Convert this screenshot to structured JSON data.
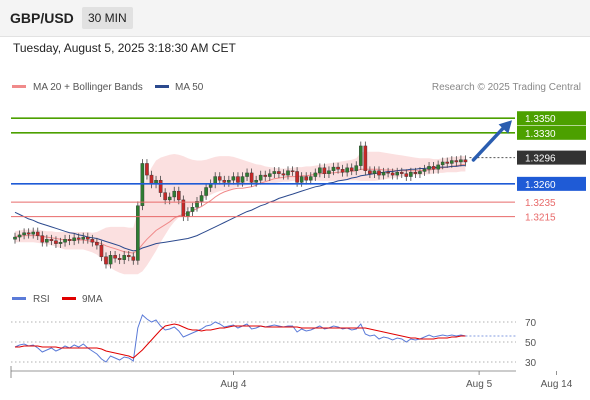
{
  "header": {
    "symbol": "GBP/USD",
    "interval": "30 MIN"
  },
  "subtitle": "Tuesday, August 5, 2025 3:18:30 AM CET",
  "credit": "Research © 2025 Trading Central",
  "colors": {
    "green": "#4ca000",
    "blue": "#1f5bd6",
    "red": "#e86a6a",
    "dark": "#333333",
    "band": "#fadada",
    "ma50": "#2c4a8e",
    "candle_up": "#2e7d32",
    "candle_down": "#c62828",
    "rsi": "#5b7bd8",
    "rsi_ma": "#e00000",
    "arrow": "#2a5db0"
  },
  "chart_data": [
    {
      "type": "candlestick",
      "title": "GBP/USD",
      "legend": [
        {
          "name": "MA 20 + Bollinger Bands",
          "color": "#f08a8a"
        },
        {
          "name": "MA 50",
          "color": "#2c4a8e"
        }
      ],
      "ylim": [
        1.3135,
        1.3375
      ],
      "x_ticks": [
        {
          "label": "Aug 4",
          "i": 48
        },
        {
          "label": "Aug 5",
          "i": 102
        },
        {
          "label": "Aug 14",
          "i": 119
        }
      ],
      "levels": [
        {
          "label": "1.3350",
          "value": 1.335,
          "color": "#4ca000"
        },
        {
          "label": "1.3330",
          "value": 1.333,
          "color": "#4ca000"
        },
        {
          "label": "1.3296",
          "value": 1.3296,
          "color": "#333333"
        },
        {
          "label": "1.3260",
          "value": 1.326,
          "color": "#1f5bd6"
        },
        {
          "label": "1.3235",
          "value": 1.3235,
          "color": "#e86a6a"
        },
        {
          "label": "1.3215",
          "value": 1.3215,
          "color": "#e86a6a"
        }
      ],
      "candles_close": [
        1.3187,
        1.319,
        1.3193,
        1.3191,
        1.3194,
        1.3189,
        1.318,
        1.3184,
        1.3182,
        1.3178,
        1.318,
        1.3184,
        1.3182,
        1.3186,
        1.3184,
        1.3187,
        1.3184,
        1.318,
        1.3176,
        1.316,
        1.315,
        1.3162,
        1.3158,
        1.3156,
        1.3162,
        1.316,
        1.3155,
        1.323,
        1.3288,
        1.3272,
        1.326,
        1.3265,
        1.3248,
        1.3238,
        1.3242,
        1.325,
        1.3238,
        1.3215,
        1.3222,
        1.3228,
        1.3236,
        1.3244,
        1.3255,
        1.326,
        1.327,
        1.3265,
        1.3262,
        1.3265,
        1.327,
        1.3262,
        1.327,
        1.3275,
        1.3262,
        1.3265,
        1.3272,
        1.327,
        1.3274,
        1.3277,
        1.3274,
        1.3272,
        1.3278,
        1.3277,
        1.3262,
        1.327,
        1.3265,
        1.327,
        1.3275,
        1.3282,
        1.3274,
        1.3278,
        1.3283,
        1.328,
        1.3276,
        1.3282,
        1.3278,
        1.3285,
        1.3312,
        1.3278,
        1.3274,
        1.3278,
        1.3272,
        1.3276,
        1.3275,
        1.3272,
        1.3276,
        1.3274,
        1.327,
        1.3276,
        1.3274,
        1.3277,
        1.328,
        1.3284,
        1.328,
        1.3286,
        1.329,
        1.3288,
        1.3292,
        1.329,
        1.3293,
        1.329
      ],
      "ma20": [
        1.3188,
        1.3188,
        1.3189,
        1.3189,
        1.3189,
        1.3189,
        1.3188,
        1.3187,
        1.3186,
        1.3185,
        1.3184,
        1.3183,
        1.3183,
        1.3183,
        1.3183,
        1.3183,
        1.3182,
        1.3181,
        1.318,
        1.3178,
        1.3175,
        1.3173,
        1.3171,
        1.3169,
        1.3167,
        1.3166,
        1.3165,
        1.3169,
        1.3177,
        1.3184,
        1.319,
        1.3196,
        1.32,
        1.3204,
        1.3208,
        1.3213,
        1.3216,
        1.3218,
        1.322,
        1.3223,
        1.3226,
        1.3229,
        1.3233,
        1.3237,
        1.3242,
        1.3246,
        1.3249,
        1.3251,
        1.3253,
        1.3254,
        1.3254,
        1.3255,
        1.3256,
        1.3258,
        1.3261,
        1.3263,
        1.3265,
        1.3267,
        1.3268,
        1.3269,
        1.327,
        1.327,
        1.327,
        1.3271,
        1.3271,
        1.3272,
        1.3273,
        1.3274,
        1.3274,
        1.3275,
        1.3275,
        1.3276,
        1.3276,
        1.3277,
        1.3277,
        1.3278,
        1.328,
        1.328,
        1.328,
        1.328,
        1.328,
        1.3279,
        1.3279,
        1.3279,
        1.3278,
        1.3278,
        1.3278,
        1.3278,
        1.3278,
        1.3278,
        1.3279,
        1.3279,
        1.328,
        1.3281,
        1.3282,
        1.3283,
        1.3284,
        1.3285,
        1.3286,
        1.3287
      ],
      "bb_upper": [
        1.3195,
        1.3196,
        1.3197,
        1.3197,
        1.3197,
        1.3197,
        1.3196,
        1.3195,
        1.3195,
        1.3194,
        1.3194,
        1.3194,
        1.3194,
        1.3194,
        1.3194,
        1.3194,
        1.3194,
        1.3193,
        1.3194,
        1.3197,
        1.32,
        1.3201,
        1.3201,
        1.3201,
        1.3201,
        1.32,
        1.32,
        1.3222,
        1.3252,
        1.327,
        1.3282,
        1.3292,
        1.3296,
        1.3298,
        1.33,
        1.3301,
        1.33,
        1.3298,
        1.3295,
        1.3293,
        1.3292,
        1.3292,
        1.3293,
        1.3295,
        1.3297,
        1.3298,
        1.3298,
        1.3298,
        1.3297,
        1.3295,
        1.3293,
        1.3291,
        1.3289,
        1.3287,
        1.3286,
        1.3284,
        1.3283,
        1.3282,
        1.3281,
        1.3281,
        1.3281,
        1.3282,
        1.3283,
        1.3283,
        1.3284,
        1.3284,
        1.3285,
        1.3286,
        1.3287,
        1.3288,
        1.3289,
        1.329,
        1.3291,
        1.3292,
        1.3293,
        1.3295,
        1.3303,
        1.3304,
        1.3304,
        1.3304,
        1.3304,
        1.3303,
        1.3302,
        1.3301,
        1.33,
        1.3299,
        1.3298,
        1.3297,
        1.3296,
        1.3295,
        1.3295,
        1.3295,
        1.3294,
        1.3294,
        1.3295,
        1.3296,
        1.3297,
        1.3297,
        1.3298,
        1.3298
      ],
      "bb_lower": [
        1.318,
        1.318,
        1.318,
        1.318,
        1.318,
        1.3179,
        1.3178,
        1.3177,
        1.3176,
        1.3174,
        1.3172,
        1.317,
        1.317,
        1.317,
        1.317,
        1.317,
        1.3168,
        1.3166,
        1.3163,
        1.3157,
        1.315,
        1.3145,
        1.3141,
        1.3138,
        1.3136,
        1.3136,
        1.3136,
        1.3136,
        1.314,
        1.3148,
        1.3158,
        1.3168,
        1.318,
        1.319,
        1.32,
        1.3208,
        1.3214,
        1.322,
        1.3225,
        1.323,
        1.3234,
        1.3238,
        1.3242,
        1.3245,
        1.3248,
        1.325,
        1.3251,
        1.3252,
        1.3254,
        1.3256,
        1.3257,
        1.3258,
        1.3259,
        1.326,
        1.3261,
        1.3261,
        1.3261,
        1.3261,
        1.3262,
        1.3263,
        1.3263,
        1.3264,
        1.3264,
        1.3265,
        1.3265,
        1.3265,
        1.3265,
        1.3264,
        1.3264,
        1.3264,
        1.3264,
        1.3264,
        1.3264,
        1.3265,
        1.3265,
        1.3265,
        1.3264,
        1.3264,
        1.3264,
        1.3264,
        1.3265,
        1.3266,
        1.3267,
        1.3268,
        1.3269,
        1.327,
        1.3271,
        1.3272,
        1.3272,
        1.3272,
        1.3273,
        1.3273,
        1.3274,
        1.3275,
        1.3275,
        1.3276,
        1.3276,
        1.3276,
        1.3277,
        1.3277
      ],
      "ma50": [
        1.3221,
        1.3218,
        1.3215,
        1.3212,
        1.321,
        1.3207,
        1.3205,
        1.3203,
        1.3201,
        1.3199,
        1.3197,
        1.3195,
        1.3193,
        1.3192,
        1.319,
        1.3189,
        1.3187,
        1.3186,
        1.3185,
        1.3183,
        1.3181,
        1.3179,
        1.3177,
        1.3175,
        1.3172,
        1.317,
        1.3168,
        1.3169,
        1.3172,
        1.3174,
        1.3176,
        1.3178,
        1.3179,
        1.318,
        1.3181,
        1.3182,
        1.3183,
        1.3184,
        1.3185,
        1.3187,
        1.3189,
        1.3192,
        1.3195,
        1.3198,
        1.3201,
        1.3204,
        1.3207,
        1.321,
        1.3213,
        1.3216,
        1.3219,
        1.3222,
        1.3224,
        1.3227,
        1.323,
        1.3232,
        1.3235,
        1.3237,
        1.324,
        1.3242,
        1.3244,
        1.3246,
        1.3248,
        1.325,
        1.3252,
        1.3254,
        1.3256,
        1.3257,
        1.3259,
        1.3261,
        1.3262,
        1.3264,
        1.3265,
        1.3266,
        1.3268,
        1.3269,
        1.3271,
        1.3272,
        1.3273,
        1.3274,
        1.3275,
        1.3276,
        1.3277,
        1.3277,
        1.3278,
        1.3279,
        1.3279,
        1.328,
        1.328,
        1.3281,
        1.3281,
        1.3282,
        1.3282,
        1.3283,
        1.3283,
        1.3283,
        1.3284,
        1.3284,
        1.3285,
        1.3285
      ]
    },
    {
      "type": "line",
      "legend": [
        {
          "name": "RSI",
          "color": "#5b7bd8"
        },
        {
          "name": "9MA",
          "color": "#e00000"
        }
      ],
      "ylim": [
        20,
        80
      ],
      "y_ticks": [
        70,
        50,
        30
      ],
      "series": [
        {
          "name": "RSI",
          "values": [
            45,
            47,
            48,
            46,
            47,
            44,
            40,
            42,
            44,
            41,
            43,
            46,
            44,
            47,
            45,
            48,
            44,
            41,
            38,
            33,
            30,
            36,
            34,
            32,
            35,
            34,
            31,
            64,
            77,
            73,
            70,
            72,
            66,
            62,
            63,
            65,
            61,
            55,
            57,
            59,
            61,
            63,
            66,
            67,
            70,
            68,
            65,
            66,
            67,
            64,
            66,
            68,
            63,
            64,
            66,
            65,
            66,
            67,
            66,
            65,
            66,
            66,
            60,
            63,
            61,
            62,
            64,
            66,
            63,
            64,
            66,
            65,
            63,
            64,
            62,
            63,
            68,
            58,
            56,
            57,
            53,
            55,
            54,
            52,
            54,
            53,
            50,
            53,
            52,
            53,
            55,
            57,
            55,
            56,
            57,
            56,
            57,
            56,
            57,
            56
          ]
        },
        {
          "name": "9MA",
          "values": [
            45,
            45,
            46,
            46,
            46,
            46,
            45,
            45,
            45,
            45,
            44,
            44,
            44,
            44,
            44,
            44,
            44,
            44,
            44,
            43,
            41,
            40,
            39,
            38,
            37,
            36,
            34,
            38,
            42,
            47,
            52,
            57,
            62,
            66,
            67,
            68,
            67,
            65,
            63,
            62,
            62,
            61,
            62,
            62,
            63,
            64,
            64,
            65,
            66,
            66,
            66,
            66,
            66,
            66,
            66,
            65,
            65,
            65,
            65,
            65,
            65,
            65,
            65,
            64,
            64,
            64,
            64,
            64,
            64,
            64,
            64,
            64,
            64,
            64,
            64,
            64,
            64,
            64,
            63,
            62,
            61,
            60,
            59,
            58,
            57,
            56,
            55,
            54,
            54,
            53,
            53,
            53,
            53,
            54,
            54,
            54,
            55,
            55,
            56,
            56
          ]
        }
      ]
    }
  ]
}
